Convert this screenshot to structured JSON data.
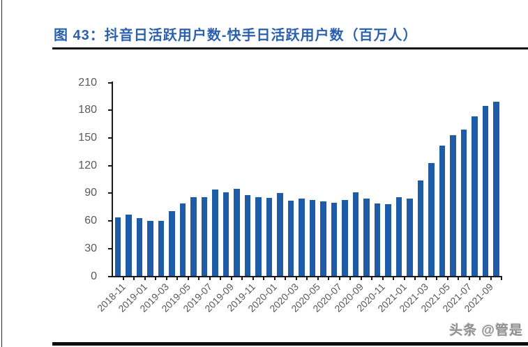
{
  "figure": {
    "label": "图 43：",
    "title": "图 43：抖音日活跃用户数-快手日活跃用户数（百万人）",
    "watermark": "头条 @管是"
  },
  "colors": {
    "bar": "#1f5ca8",
    "title_text": "#2b60ae",
    "axis": "#1a1a1a",
    "tick_label": "#595959",
    "rule": "#0d0d0d"
  },
  "chart_data": {
    "type": "bar",
    "title": "图 43：抖音日活跃用户数-快手日活跃用户数（百万人）",
    "unit": "百万人",
    "categories": [
      "2018-11",
      "2018-12",
      "2019-01",
      "2019-02",
      "2019-03",
      "2019-04",
      "2019-05",
      "2019-06",
      "2019-07",
      "2019-08",
      "2019-09",
      "2019-10",
      "2019-11",
      "2019-12",
      "2020-01",
      "2020-02",
      "2020-03",
      "2020-04",
      "2020-05",
      "2020-06",
      "2020-07",
      "2020-08",
      "2020-09",
      "2020-10",
      "2020-11",
      "2020-12",
      "2021-01",
      "2021-02",
      "2021-03",
      "2021-04",
      "2021-05",
      "2021-06",
      "2021-07",
      "2021-08",
      "2021-09",
      "2021-10"
    ],
    "values": [
      64,
      67,
      63,
      60,
      60,
      71,
      79,
      86,
      86,
      94,
      91,
      95,
      88,
      86,
      85,
      90,
      82,
      84,
      83,
      81,
      80,
      83,
      91,
      84,
      79,
      78,
      86,
      84,
      104,
      123,
      142,
      153,
      159,
      173,
      185,
      189
    ],
    "x_tick_labels": [
      "2018-11",
      "2019-01",
      "2019-03",
      "2019-05",
      "2019-07",
      "2019-09",
      "2019-11",
      "2020-01",
      "2020-03",
      "2020-05",
      "2020-07",
      "2020-09",
      "2020-11",
      "2021-01",
      "2021-03",
      "2021-05",
      "2021-07",
      "2021-09"
    ],
    "x_label_every": 2,
    "xlabel": "",
    "ylabel": "",
    "ylim": [
      0,
      210
    ],
    "yticks": [
      0,
      30,
      60,
      90,
      120,
      150,
      180,
      210
    ],
    "grid": false,
    "legend": null,
    "bar_color": "#1f5ca8"
  }
}
